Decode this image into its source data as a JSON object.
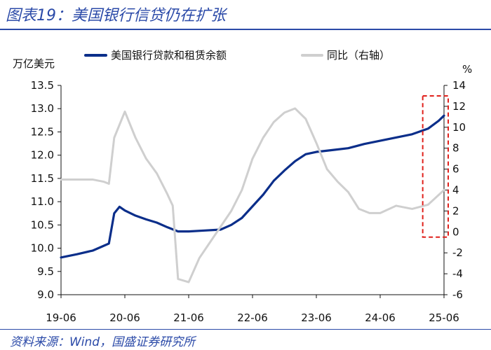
{
  "title": "图表19：美国银行信贷仍在扩张",
  "source": "资料来源：Wind，国盛证券研究所",
  "colors": {
    "brand": "#2b4aa8",
    "loans": "#0b2e8a",
    "yoy": "#cfcfcf",
    "highlight_box": "#e0201b"
  },
  "chart_data": {
    "type": "line",
    "left_axis_title": "万亿美元",
    "right_axis_title": "%",
    "x": {
      "ticks": [
        "19-06",
        "20-06",
        "21-06",
        "22-06",
        "23-06",
        "24-06",
        "25-06"
      ],
      "range": [
        "2019-06",
        "2025-06"
      ]
    },
    "y_left": {
      "range": [
        9.0,
        13.5
      ],
      "ticks": [
        "13.5",
        "13.0",
        "12.5",
        "12.0",
        "11.5",
        "11.0",
        "10.5",
        "10.0",
        "9.5",
        "9.0"
      ]
    },
    "y_right": {
      "range": [
        -6,
        14
      ],
      "ticks": [
        "14",
        "12",
        "10",
        "8",
        "6",
        "4",
        "2",
        "0",
        "-2",
        "-4",
        "-6"
      ]
    },
    "legend_position": "top",
    "series": [
      {
        "name": "美国银行贷款和租赁余额",
        "axis": "left",
        "color": "#0b2e8a",
        "points": [
          [
            "2019-06",
            9.8
          ],
          [
            "2019-09",
            9.87
          ],
          [
            "2019-12",
            9.95
          ],
          [
            "2020-02",
            10.05
          ],
          [
            "2020-03",
            10.1
          ],
          [
            "2020-04",
            10.75
          ],
          [
            "2020-05",
            10.89
          ],
          [
            "2020-06",
            10.81
          ],
          [
            "2020-08",
            10.7
          ],
          [
            "2020-10",
            10.62
          ],
          [
            "2020-12",
            10.55
          ],
          [
            "2021-02",
            10.45
          ],
          [
            "2021-04",
            10.36
          ],
          [
            "2021-06",
            10.36
          ],
          [
            "2021-09",
            10.38
          ],
          [
            "2021-12",
            10.4
          ],
          [
            "2022-02",
            10.5
          ],
          [
            "2022-04",
            10.65
          ],
          [
            "2022-06",
            10.9
          ],
          [
            "2022-08",
            11.15
          ],
          [
            "2022-10",
            11.45
          ],
          [
            "2022-12",
            11.67
          ],
          [
            "2023-02",
            11.87
          ],
          [
            "2023-04",
            12.02
          ],
          [
            "2023-06",
            12.07
          ],
          [
            "2023-09",
            12.11
          ],
          [
            "2023-12",
            12.15
          ],
          [
            "2024-03",
            12.24
          ],
          [
            "2024-06",
            12.31
          ],
          [
            "2024-09",
            12.38
          ],
          [
            "2024-12",
            12.45
          ],
          [
            "2025-03",
            12.57
          ],
          [
            "2025-05",
            12.74
          ],
          [
            "2025-06",
            12.85
          ]
        ]
      },
      {
        "name": "同比（右轴）",
        "axis": "right",
        "color": "#cfcfcf",
        "points": [
          [
            "2019-06",
            5.0
          ],
          [
            "2019-09",
            5.0
          ],
          [
            "2019-12",
            5.0
          ],
          [
            "2020-02",
            4.8
          ],
          [
            "2020-03",
            4.6
          ],
          [
            "2020-04",
            9.0
          ],
          [
            "2020-06",
            11.5
          ],
          [
            "2020-08",
            9.0
          ],
          [
            "2020-10",
            7.0
          ],
          [
            "2020-12",
            5.6
          ],
          [
            "2021-02",
            3.6
          ],
          [
            "2021-03",
            2.5
          ],
          [
            "2021-04",
            -4.5
          ],
          [
            "2021-06",
            -4.8
          ],
          [
            "2021-08",
            -2.5
          ],
          [
            "2021-10",
            -1.0
          ],
          [
            "2021-12",
            0.5
          ],
          [
            "2022-02",
            2.0
          ],
          [
            "2022-04",
            4.0
          ],
          [
            "2022-06",
            7.0
          ],
          [
            "2022-08",
            9.0
          ],
          [
            "2022-10",
            10.5
          ],
          [
            "2022-12",
            11.4
          ],
          [
            "2023-02",
            11.8
          ],
          [
            "2023-04",
            10.8
          ],
          [
            "2023-06",
            8.5
          ],
          [
            "2023-08",
            6.0
          ],
          [
            "2023-10",
            4.8
          ],
          [
            "2023-12",
            3.8
          ],
          [
            "2024-02",
            2.2
          ],
          [
            "2024-04",
            1.8
          ],
          [
            "2024-06",
            1.8
          ],
          [
            "2024-09",
            2.5
          ],
          [
            "2024-12",
            2.2
          ],
          [
            "2025-03",
            2.6
          ],
          [
            "2025-06",
            4.0
          ]
        ]
      }
    ],
    "annotation": {
      "type": "dashed-box",
      "x_range": [
        "2025-02",
        "2025-06"
      ],
      "y_right_range": [
        -0.5,
        13.0
      ]
    }
  }
}
